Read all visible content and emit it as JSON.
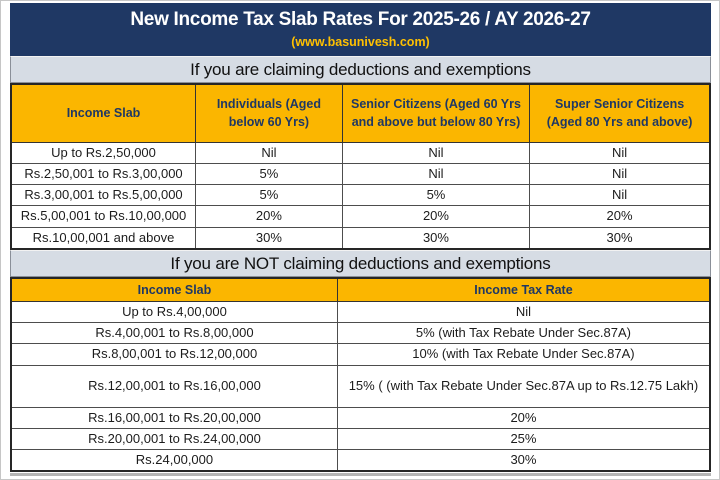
{
  "page": {
    "title": "New Income Tax Slab Rates For 2025-26 / AY 2026-27",
    "subtitle": "(www.basunivesh.com)"
  },
  "colors": {
    "banner_navy": "#1F3864",
    "header_gold": "#FBB600",
    "subtitle_gold": "#FFC000",
    "section_bar_gray": "#D6DCE4",
    "body_text": "#1c1c1c"
  },
  "section1": {
    "heading": "If you are claiming deductions and exemptions",
    "columns": [
      "Income Slab",
      "Individuals (Aged below 60 Yrs)",
      "Senior Citizens (Aged 60 Yrs and above but below 80 Yrs)",
      "Super Senior Citizens (Aged 80 Yrs and above)"
    ],
    "rows": [
      [
        "Up to Rs.2,50,000",
        "Nil",
        "Nil",
        "Nil"
      ],
      [
        "Rs.2,50,001 to Rs.3,00,000",
        "5%",
        "Nil",
        "Nil"
      ],
      [
        "Rs.3,00,001 to Rs.5,00,000",
        "5%",
        "5%",
        "Nil"
      ],
      [
        "Rs.5,00,001 to Rs.10,00,000",
        "20%",
        "20%",
        "20%"
      ],
      [
        "Rs.10,00,001 and above",
        "30%",
        "30%",
        "30%"
      ]
    ]
  },
  "section2": {
    "heading": "If you are NOT claiming deductions and exemptions",
    "columns": [
      "Income Slab",
      "Income Tax Rate"
    ],
    "rows": [
      [
        "Up to Rs.4,00,000",
        "Nil"
      ],
      [
        "Rs.4,00,001 to Rs.8,00,000",
        "5% (with Tax Rebate Under Sec.87A)"
      ],
      [
        "Rs.8,00,001 to Rs.12,00,000",
        "10% (with Tax Rebate Under Sec.87A)"
      ],
      [
        "Rs.12,00,001 to Rs.16,00,000",
        "15% ( (with Tax Rebate Under Sec.87A up to Rs.12.75 Lakh)"
      ],
      [
        "Rs.16,00,001 to Rs.20,00,000",
        "20%"
      ],
      [
        "Rs.20,00,001 to Rs.24,00,000",
        "25%"
      ],
      [
        "Rs.24,00,000",
        "30%"
      ]
    ]
  }
}
